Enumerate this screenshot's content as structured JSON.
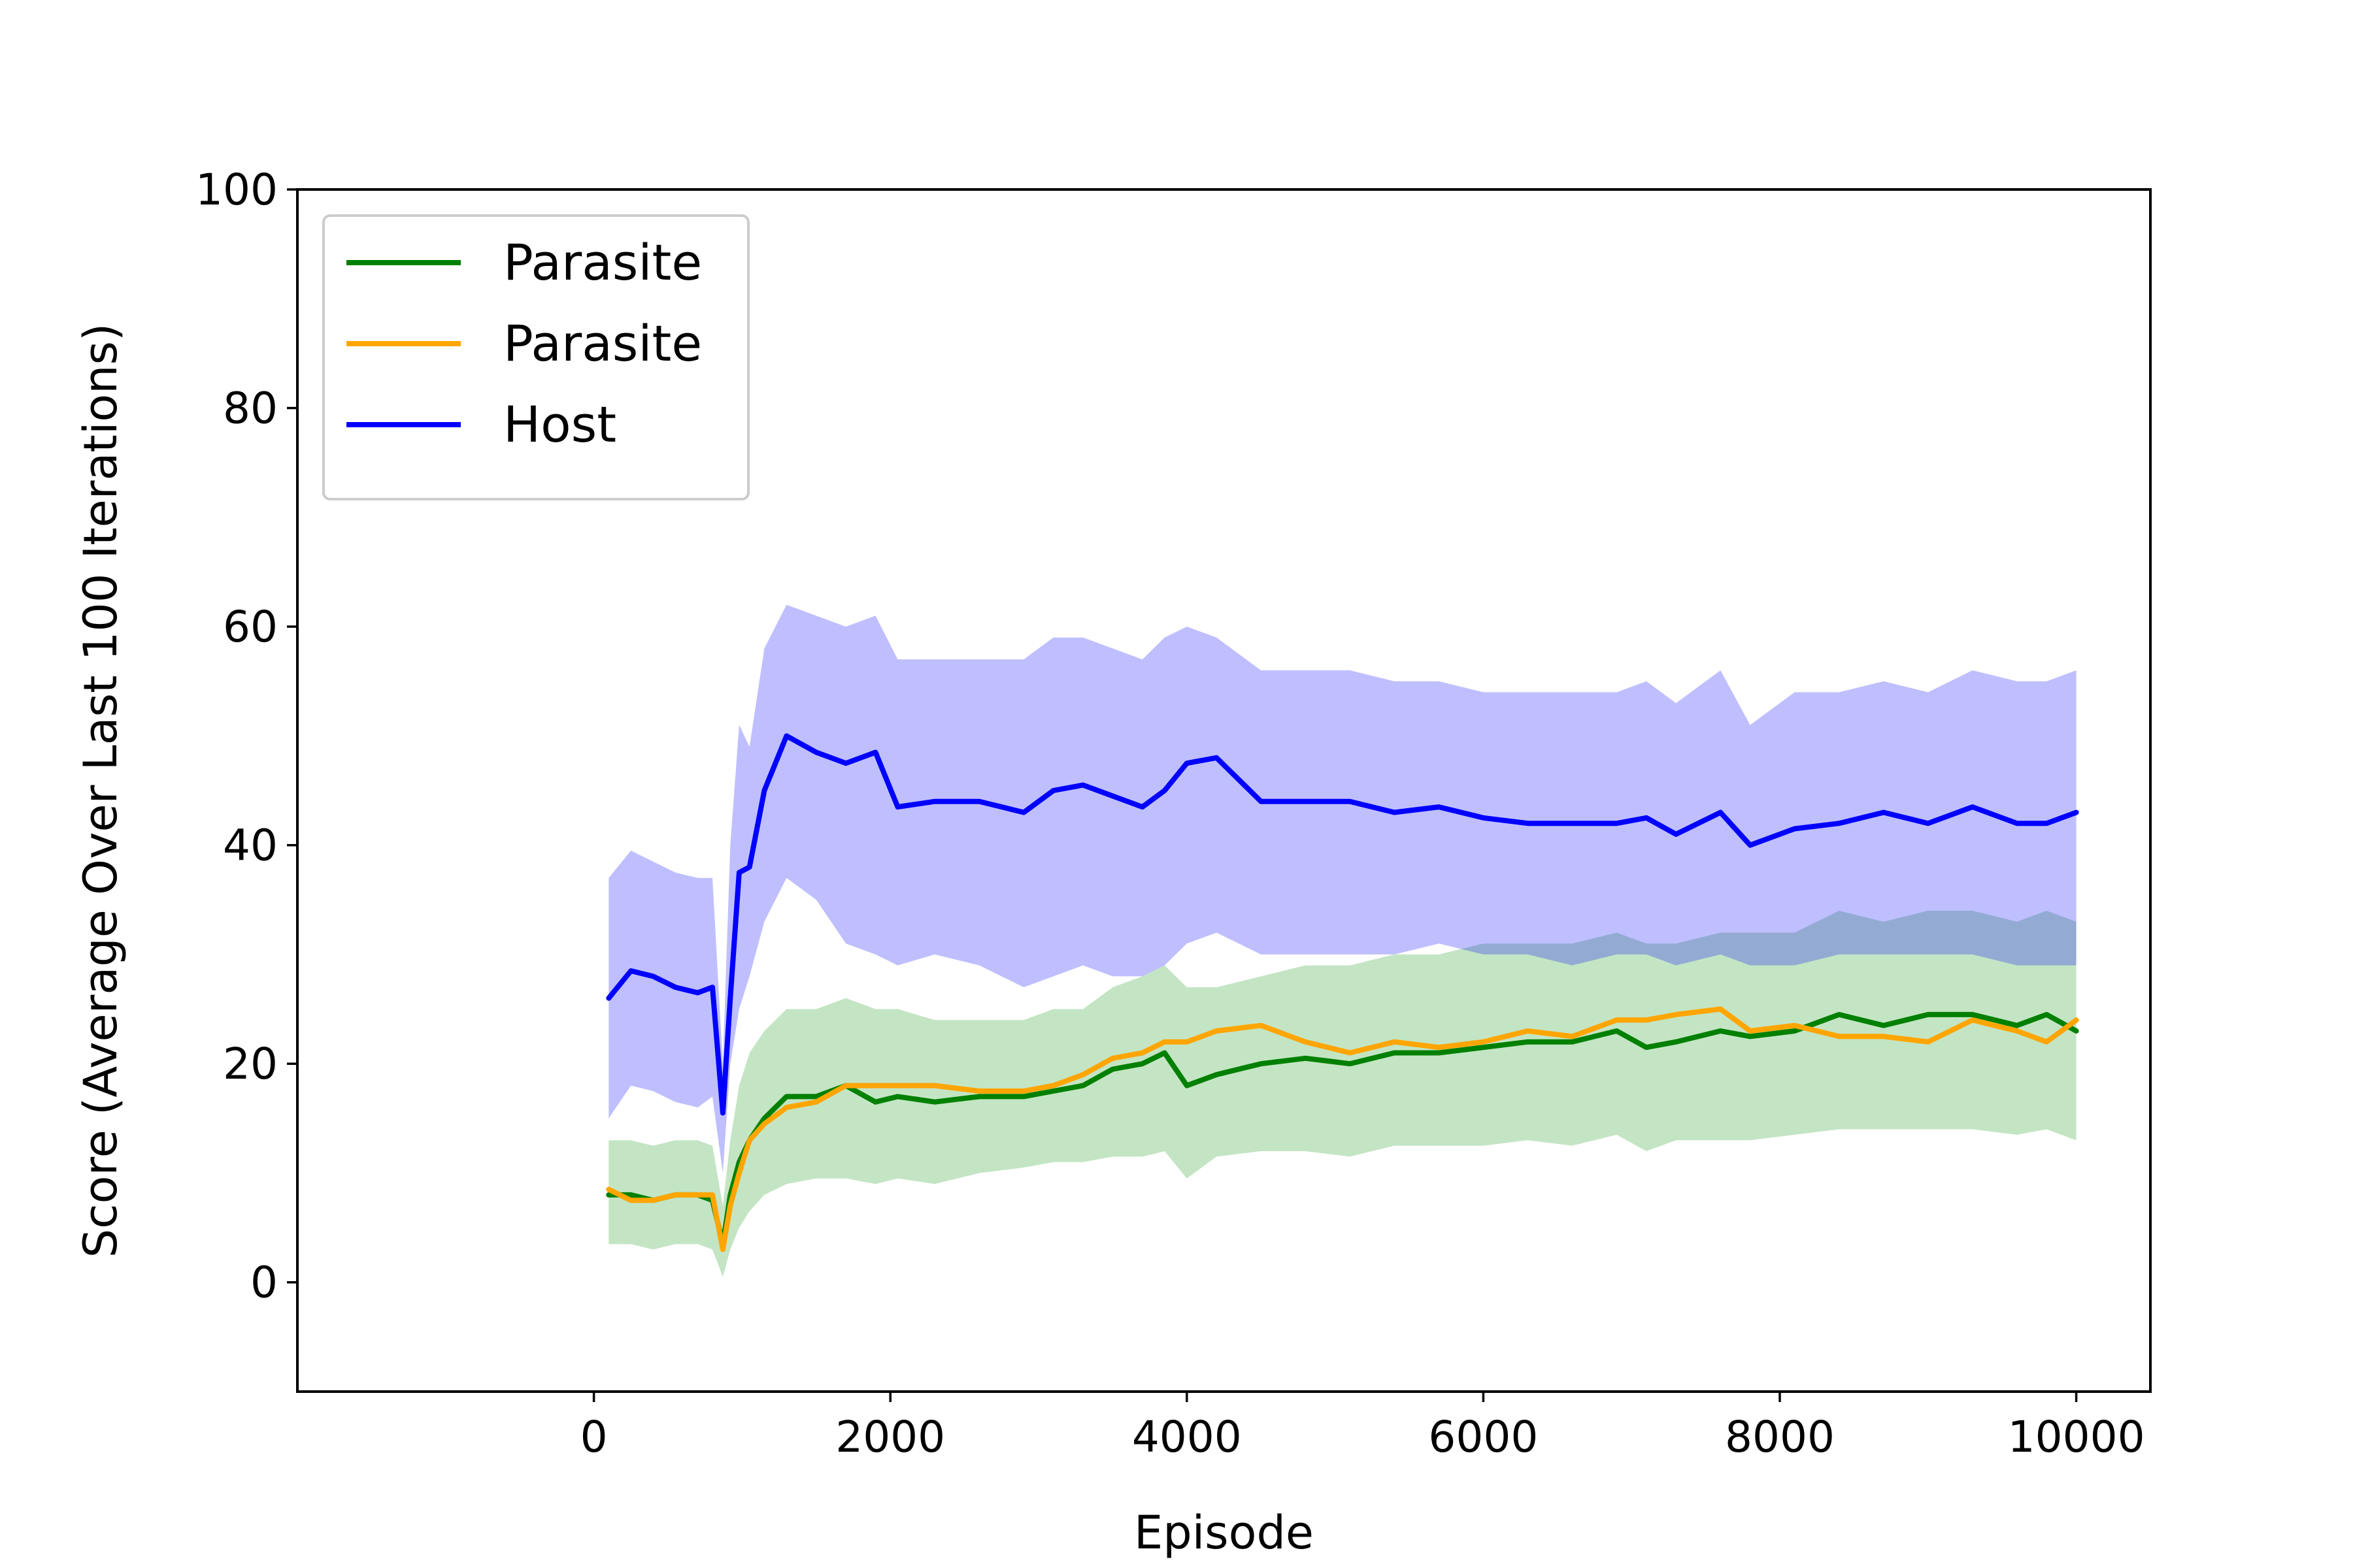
{
  "chart_data": {
    "type": "line",
    "title": "",
    "xlabel": "Episode",
    "ylabel": "Score (Average Over Last 100 Iterations)",
    "xlim": [
      -2000,
      10500
    ],
    "ylim": [
      -10,
      100
    ],
    "xticks": [
      0,
      2000,
      4000,
      6000,
      8000,
      10000
    ],
    "yticks": [
      0,
      20,
      40,
      60,
      80,
      100
    ],
    "grid": false,
    "legend_position": "top-left",
    "x": [
      100,
      250,
      400,
      550,
      700,
      800,
      870,
      920,
      980,
      1050,
      1150,
      1300,
      1500,
      1700,
      1900,
      2050,
      2300,
      2600,
      2900,
      3100,
      3300,
      3500,
      3700,
      3850,
      4000,
      4200,
      4500,
      4800,
      5100,
      5400,
      5700,
      6000,
      6300,
      6600,
      6900,
      7100,
      7300,
      7600,
      7800,
      8100,
      8400,
      8700,
      9000,
      9300,
      9600,
      9800,
      10000
    ],
    "series": [
      {
        "name": "Parasite",
        "color": "#008000",
        "band_color": "#2ca02c",
        "band_alpha": 0.28,
        "values": [
          8,
          8,
          7.5,
          8,
          8,
          7.5,
          3.5,
          8,
          11,
          13,
          15,
          17,
          17,
          18,
          16.5,
          17,
          16.5,
          17,
          17,
          17.5,
          18,
          19.5,
          20,
          21,
          18,
          19,
          20,
          20.5,
          20,
          21,
          21,
          21.5,
          22,
          22,
          23,
          21.5,
          22,
          23,
          22.5,
          23,
          24.5,
          23.5,
          24.5,
          24.5,
          23.5,
          24.5,
          23
        ],
        "lower": [
          3.5,
          3.5,
          3,
          3.5,
          3.5,
          3,
          0.5,
          3,
          5,
          6.5,
          8,
          9,
          9.5,
          9.5,
          9,
          9.5,
          9,
          10,
          10.5,
          11,
          11,
          11.5,
          11.5,
          12,
          9.5,
          11.5,
          12,
          12,
          11.5,
          12.5,
          12.5,
          12.5,
          13,
          12.5,
          13.5,
          12,
          13,
          13,
          13,
          13.5,
          14,
          14,
          14,
          14,
          13.5,
          14,
          13
        ],
        "upper": [
          13,
          13,
          12.5,
          13,
          13,
          12.5,
          7,
          13,
          18,
          21,
          23,
          25,
          25,
          26,
          25,
          25,
          24,
          24,
          24,
          25,
          25,
          27,
          28,
          29,
          27,
          27,
          28,
          29,
          29,
          30,
          30,
          31,
          31,
          31,
          32,
          31,
          31,
          32,
          32,
          32,
          34,
          33,
          34,
          34,
          33,
          34,
          33
        ]
      },
      {
        "name": "Parasite",
        "color": "#ffa500",
        "band_color": "#ffa500",
        "band_alpha": 0.25,
        "values": [
          8.5,
          7.5,
          7.5,
          8,
          8,
          8,
          3,
          7,
          10,
          13,
          14.5,
          16,
          16.5,
          18,
          18,
          18,
          18,
          17.5,
          17.5,
          18,
          19,
          20.5,
          21,
          22,
          22,
          23,
          23.5,
          22,
          21,
          22,
          21.5,
          22,
          23,
          22.5,
          24,
          24,
          24.5,
          25,
          23,
          23.5,
          22.5,
          22.5,
          22,
          24,
          23,
          22,
          24
        ]
      },
      {
        "name": "Host",
        "color": "#0000ff",
        "band_color": "#0000ff",
        "band_alpha": 0.25,
        "values": [
          26,
          28.5,
          28,
          27,
          26.5,
          27,
          15.5,
          26,
          37.5,
          38,
          45,
          50,
          48.5,
          47.5,
          48.5,
          43.5,
          44,
          44,
          43,
          45,
          45.5,
          44.5,
          43.5,
          45,
          47.5,
          48,
          44,
          44,
          44,
          43,
          43.5,
          42.5,
          42,
          42,
          42,
          42.5,
          41,
          43,
          40,
          41.5,
          42,
          43,
          42,
          43.5,
          42,
          42,
          43
        ],
        "lower": [
          15,
          18,
          17.5,
          16.5,
          16,
          17,
          10,
          20,
          25,
          28,
          33,
          37,
          35,
          31,
          30,
          29,
          30,
          29,
          27,
          28,
          29,
          28,
          28,
          29,
          31,
          32,
          30,
          30,
          30,
          30,
          31,
          30,
          30,
          29,
          30,
          30,
          29,
          30,
          29,
          29,
          30,
          30,
          30,
          30,
          29,
          29,
          29
        ],
        "upper": [
          37,
          39.5,
          38.5,
          37.5,
          37,
          37,
          20,
          40,
          51,
          49,
          58,
          62,
          61,
          60,
          61,
          57,
          57,
          57,
          57,
          59,
          59,
          58,
          57,
          59,
          60,
          59,
          56,
          56,
          56,
          55,
          55,
          54,
          54,
          54,
          54,
          55,
          53,
          56,
          51,
          54,
          54,
          55,
          54,
          56,
          55,
          55,
          56
        ]
      }
    ]
  }
}
